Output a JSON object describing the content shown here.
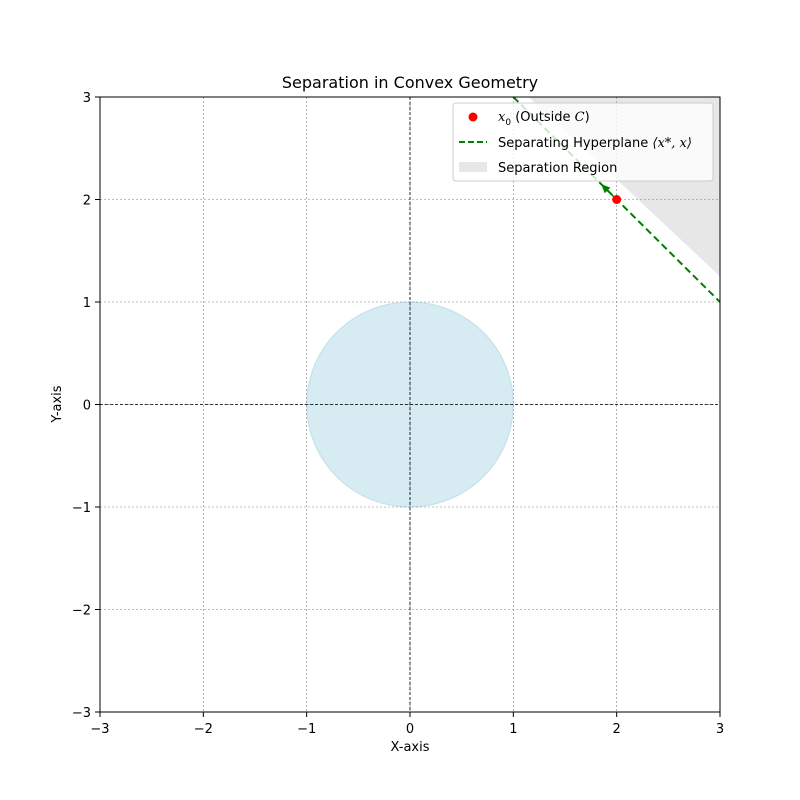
{
  "chart_data": {
    "type": "scatter",
    "title": "Separation in Convex Geometry",
    "xlabel": "X-axis",
    "ylabel": "Y-axis",
    "xlim": [
      -3,
      3
    ],
    "ylim": [
      -3,
      3
    ],
    "xticks": [
      -3,
      -2,
      -1,
      0,
      1,
      2,
      3
    ],
    "yticks": [
      -3,
      -2,
      -1,
      0,
      1,
      2,
      3
    ],
    "xtick_labels": [
      "−3",
      "−2",
      "−1",
      "0",
      "1",
      "2",
      "3"
    ],
    "ytick_labels": [
      "−3",
      "−2",
      "−1",
      "0",
      "1",
      "2",
      "3"
    ],
    "grid": true,
    "legend_position": "top-right",
    "convex_set": {
      "shape": "disk",
      "center": [
        0,
        0
      ],
      "radius": 1,
      "color": "#add8e6"
    },
    "point": {
      "label": "x0 (Outside C)",
      "label_main": "x",
      "label_sub": "0",
      "label_rest": " (Outside ",
      "label_set": "C",
      "label_close": ")",
      "x": 2,
      "y": 2,
      "color": "#ff0000"
    },
    "hyperplane": {
      "label": "Separating Hyperplane ⟨x*, x⟩",
      "label_prefix": "Separating Hyperplane ",
      "label_math": "⟨x*, x⟩",
      "x": [
        1,
        3
      ],
      "y": [
        3,
        1
      ],
      "color": "#008000",
      "style": "dashed"
    },
    "normal_arrow": {
      "from": [
        2,
        2
      ],
      "to": [
        1.85,
        2.15
      ],
      "color": "#008000"
    },
    "separation_region": {
      "label": "Separation Region",
      "polygon": [
        [
          1.15,
          3
        ],
        [
          3,
          3
        ],
        [
          3,
          1.25
        ]
      ],
      "color": "#d3d3d3"
    }
  }
}
